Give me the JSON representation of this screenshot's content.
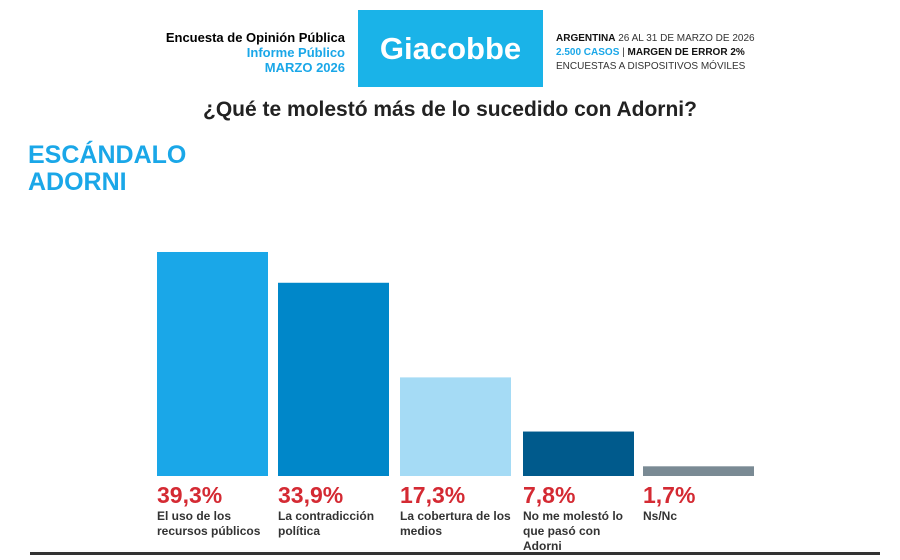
{
  "header": {
    "left": [
      "Encuesta de Opinión Pública",
      "Informe Público",
      "MARZO 2026"
    ],
    "logo": "Giacobbe",
    "right": {
      "country": "ARGENTINA",
      "dates": "26 AL 31 DE MARZO DE 2026",
      "cases": "2.500 CASOS",
      "margin": "MARGEN DE ERROR 2%",
      "method": "ENCUESTAS A DISPOSITIVOS MÓVILES"
    }
  },
  "section": [
    "ESCÁNDALO",
    "ADORNI"
  ],
  "chart_data": {
    "type": "bar",
    "title": "¿Qué te molestó más de lo sucedido con Adorni?",
    "categories": [
      "El uso de los recursos públicos",
      "La contradicción política",
      "La cobertura de los medios",
      "No me molestó lo que pasó con Adorni",
      "Ns/Nc"
    ],
    "values": [
      39.3,
      33.9,
      17.3,
      7.8,
      1.7
    ],
    "labels": [
      "39,3%",
      "33,9%",
      "17,3%",
      "7,8%",
      "1,7%"
    ],
    "colors": [
      "#1aa7e8",
      "#0087c9",
      "#a5dbf5",
      "#005a8c",
      "#7a8a94"
    ],
    "ylim": [
      0,
      40
    ],
    "grid": false
  }
}
